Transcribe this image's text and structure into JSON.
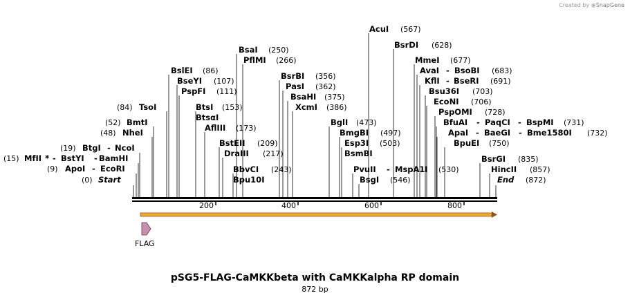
{
  "credit": {
    "prefix": "Created by",
    "brand": "SnapGene"
  },
  "title": "pSG5-FLAG-CaMKKbeta with CaMKKalpha RP domain",
  "subtitle": "872 bp",
  "sequence_length": 872,
  "ruler_ticks": [
    "200",
    "400",
    "600",
    "800"
  ],
  "termini": [
    {
      "label": "Start",
      "pos": "(0)"
    },
    {
      "label": "End",
      "pos": "(872)"
    }
  ],
  "left_site_groups": [
    {
      "names": [
        "ApoI",
        "EcoRI"
      ],
      "pos": "(9)"
    },
    {
      "names": [
        "MfII",
        "BstYI",
        "BamHI"
      ],
      "pos": "(15)",
      "marker": "*"
    },
    {
      "names": [
        "BtgI",
        "NcoI"
      ],
      "pos": "(19)"
    },
    {
      "names": [
        "NheI"
      ],
      "pos": "(48)"
    },
    {
      "names": [
        "BmtI"
      ],
      "pos": "(52)"
    },
    {
      "names": [
        "TsoI"
      ],
      "pos": "(84)"
    }
  ],
  "right_site_groups": [
    {
      "names": [
        "BslEI"
      ],
      "pos": "(86)"
    },
    {
      "names": [
        "BseYI"
      ],
      "pos": "(107)"
    },
    {
      "names": [
        "PspFI"
      ],
      "pos": "(111)"
    },
    {
      "names": [
        "BtsI"
      ],
      "pos": "(153)"
    },
    {
      "names": [
        "BtsαI"
      ],
      "pos": ""
    },
    {
      "names": [
        "AflIII"
      ],
      "pos": "(173)"
    },
    {
      "names": [
        "BstEII"
      ],
      "pos": "(209)"
    },
    {
      "names": [
        "DraIII"
      ],
      "pos": "(217)"
    },
    {
      "names": [
        "BbvCI"
      ],
      "pos": "(243)"
    },
    {
      "names": [
        "Bpu10I"
      ],
      "pos": ""
    },
    {
      "names": [
        "BsaI"
      ],
      "pos": "(250)"
    },
    {
      "names": [
        "PflMI"
      ],
      "pos": "(266)"
    },
    {
      "names": [
        "BsrBI"
      ],
      "pos": "(356)"
    },
    {
      "names": [
        "PasI"
      ],
      "pos": "(362)"
    },
    {
      "names": [
        "BsaHI"
      ],
      "pos": "(375)"
    },
    {
      "names": [
        "XcmI"
      ],
      "pos": "(386)"
    },
    {
      "names": [
        "BglI"
      ],
      "pos": "(473)"
    },
    {
      "names": [
        "BmgBI"
      ],
      "pos": "(497)"
    },
    {
      "names": [
        "Esp3I"
      ],
      "pos": "(503)"
    },
    {
      "names": [
        "BsmBI"
      ],
      "pos": ""
    },
    {
      "names": [
        "PvuII",
        "MspA1I"
      ],
      "pos": "(530)"
    },
    {
      "names": [
        "BsgI"
      ],
      "pos": "(546)"
    },
    {
      "names": [
        "AcuI"
      ],
      "pos": "(567)"
    },
    {
      "names": [
        "BsrDI"
      ],
      "pos": "(628)"
    },
    {
      "names": [
        "MmeI"
      ],
      "pos": "(677)"
    },
    {
      "names": [
        "AvaI",
        "BsoBI"
      ],
      "pos": "(683)"
    },
    {
      "names": [
        "KflI",
        "BseRI"
      ],
      "pos": "(691)"
    },
    {
      "names": [
        "Bsu36I"
      ],
      "pos": "(703)"
    },
    {
      "names": [
        "EcoNI"
      ],
      "pos": "(706)"
    },
    {
      "names": [
        "PspOMI"
      ],
      "pos": "(728)"
    },
    {
      "names": [
        "BfuAI",
        "PaqCI",
        "BspMI"
      ],
      "pos": "(731)"
    },
    {
      "names": [
        "ApaI",
        "BaeGI",
        "Bme1580I"
      ],
      "pos": "(732)"
    },
    {
      "names": [
        "BpuEI"
      ],
      "pos": "(750)"
    },
    {
      "names": [
        "BsrGI"
      ],
      "pos": "(835)"
    },
    {
      "names": [
        "HincII"
      ],
      "pos": "(857)"
    }
  ],
  "features": [
    {
      "name": "FLAG",
      "color": "#c98fb0"
    }
  ],
  "orf_color": "#f0a830",
  "orf_border": "#8a5a1a"
}
